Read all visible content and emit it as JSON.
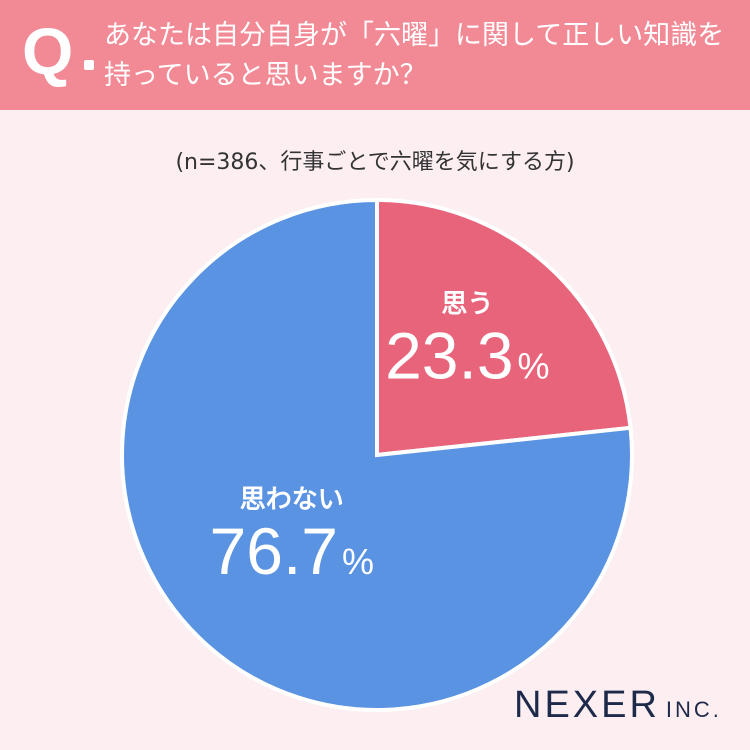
{
  "header": {
    "q_mark": "Q",
    "question": "あなたは自分自身が「六曜」に関して正しい知識を持っていると思いますか？"
  },
  "sample_note": "(n=386、行事ごとで六曜を気にする方)",
  "logo": {
    "name": "NEXER",
    "suffix": "INC."
  },
  "colors": {
    "header_bg": "#f28a96",
    "page_bg": "#fceef1",
    "yes": "#e8647a",
    "no": "#5b93e3"
  },
  "chart_data": {
    "type": "pie",
    "title": "あなたは自分自身が「六曜」に関して正しい知識を持っていると思いますか？",
    "subtitle": "(n=386、行事ごとで六曜を気にする方)",
    "categories": [
      "思う",
      "思わない"
    ],
    "values": [
      23.3,
      76.7
    ],
    "value_labels": [
      "23.3",
      "76.7"
    ],
    "unit": "%",
    "colors": [
      "#e8647a",
      "#5b93e3"
    ],
    "start_angle": "12 o'clock",
    "direction": "clockwise",
    "legend": "none (labels inside slices)"
  }
}
